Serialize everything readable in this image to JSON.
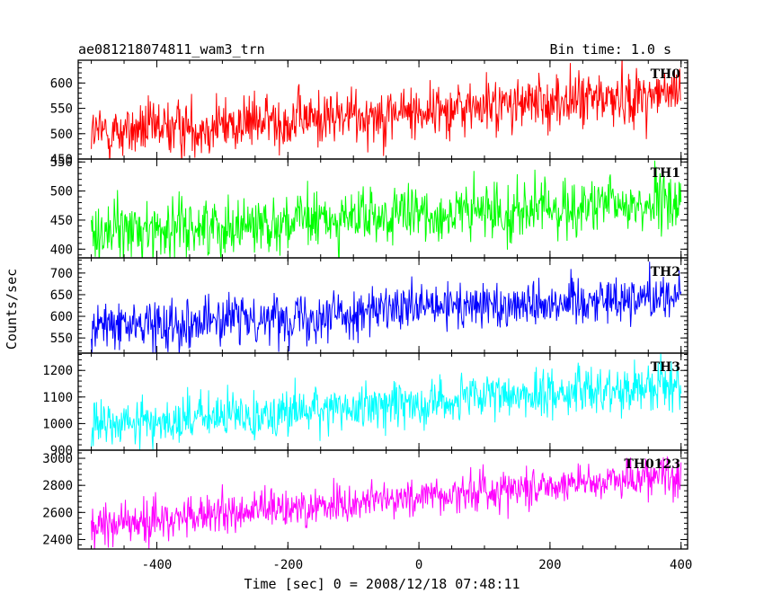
{
  "header": {
    "title": "ae081218074811_wam3_trn",
    "bin_time": "Bin time: 1.0 s"
  },
  "chart_data": {
    "type": "line",
    "xlabel": "Time [sec] 0 = 2008/12/18 07:48:11",
    "ylabel": "Counts/sec",
    "xlim": [
      -520,
      410
    ],
    "x_ticks": [
      -400,
      -200,
      0,
      200,
      400
    ],
    "x_range": [
      -500,
      400
    ],
    "bin_time_s": 1.0,
    "panels": [
      {
        "name": "TH0",
        "color": "#ff0000",
        "ylim": [
          450,
          645
        ],
        "y_ticks": [
          450,
          500,
          550,
          600
        ],
        "trend": [
          500,
          580
        ],
        "noise": 28
      },
      {
        "name": "TH1",
        "color": "#00ff00",
        "ylim": [
          385,
          555
        ],
        "y_ticks": [
          400,
          450,
          500,
          550
        ],
        "trend": [
          430,
          480
        ],
        "noise": 25
      },
      {
        "name": "TH2",
        "color": "#0000ff",
        "ylim": [
          515,
          735
        ],
        "y_ticks": [
          550,
          600,
          650,
          700
        ],
        "trend": [
          575,
          650
        ],
        "noise": 28
      },
      {
        "name": "TH3",
        "color": "#00ffff",
        "ylim": [
          900,
          1265
        ],
        "y_ticks": [
          900,
          1000,
          1100,
          1200
        ],
        "trend": [
          990,
          1150
        ],
        "noise": 45
      },
      {
        "name": "TH0123",
        "color": "#ff00ff",
        "ylim": [
          2330,
          3060
        ],
        "y_ticks": [
          2400,
          2600,
          2800,
          3000
        ],
        "trend": [
          2500,
          2890
        ],
        "noise": 75
      }
    ]
  }
}
